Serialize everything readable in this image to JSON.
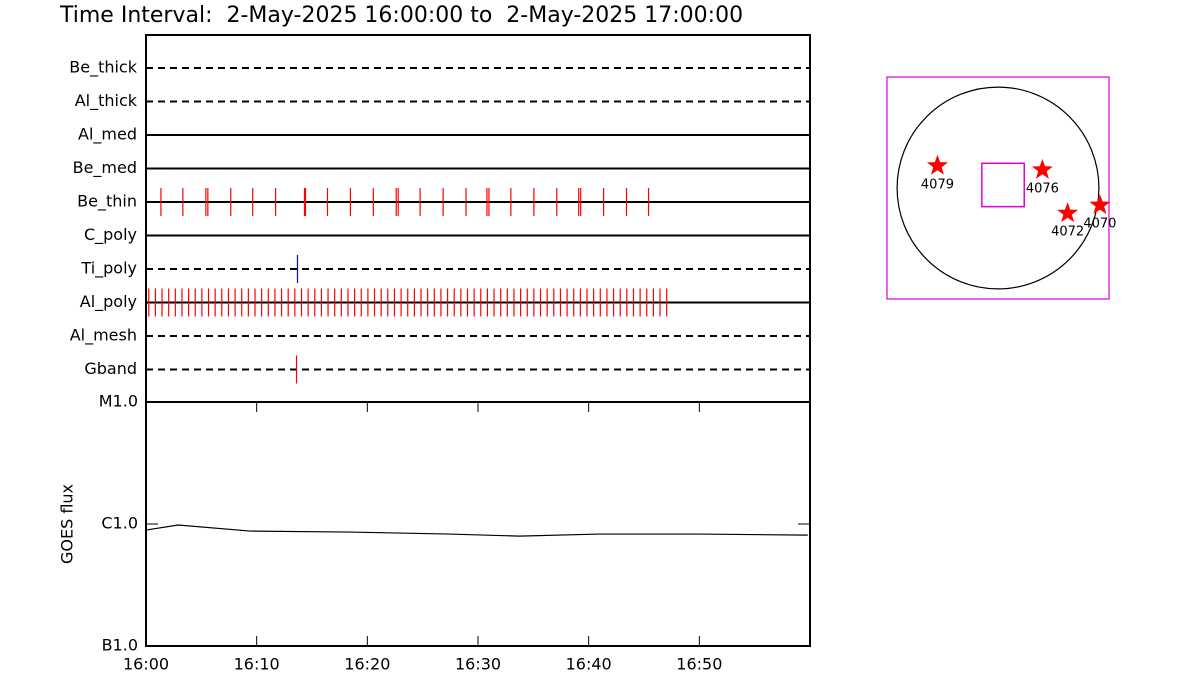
{
  "chart_data": [
    {
      "type": "timeline",
      "title": "Time Interval:  2-May-2025 16:00:00 to  2-May-2025 17:00:00",
      "xlim": [
        0,
        60
      ],
      "filters": [
        {
          "name": "Be_thick",
          "style": "dashed",
          "color": "#ff0000",
          "events": []
        },
        {
          "name": "Al_thick",
          "style": "dashed",
          "color": "#ff0000",
          "events": []
        },
        {
          "name": "Al_med",
          "style": "solid",
          "color": "#ff0000",
          "events": []
        },
        {
          "name": "Be_med",
          "style": "solid",
          "color": "#ff0000",
          "events": []
        },
        {
          "name": "Be_thin",
          "style": "solid",
          "color": "#ff0000",
          "events": [
            1.35,
            3.33,
            5.41,
            5.59,
            7.66,
            9.64,
            11.71,
            14.32,
            14.41,
            16.4,
            18.47,
            20.54,
            22.61,
            22.79,
            24.77,
            26.85,
            28.92,
            30.81,
            30.99,
            32.97,
            35.05,
            37.12,
            39.1,
            39.28,
            41.35,
            43.42,
            45.41
          ]
        },
        {
          "name": "C_poly",
          "style": "solid",
          "color": "#ff0000",
          "events": []
        },
        {
          "name": "Ti_poly",
          "style": "dashed",
          "color": "#0000ff",
          "events": [
            13.69
          ]
        },
        {
          "name": "Al_poly",
          "style": "solid",
          "color": "#ff0000",
          "events": [
            0.25,
            0.85,
            1.45,
            2.05,
            2.65,
            3.25,
            3.85,
            4.45,
            5.05,
            5.65,
            6.25,
            6.85,
            7.45,
            8.05,
            8.65,
            9.25,
            9.85,
            10.45,
            11.05,
            11.65,
            12.25,
            12.85,
            13.45,
            14.05,
            14.65,
            15.25,
            15.85,
            16.45,
            17.05,
            17.65,
            18.25,
            18.85,
            19.45,
            20.05,
            20.65,
            21.25,
            21.85,
            22.45,
            23.05,
            23.65,
            24.25,
            24.85,
            25.45,
            26.05,
            26.65,
            27.25,
            27.85,
            28.45,
            29.05,
            29.65,
            30.25,
            30.85,
            31.45,
            32.05,
            32.65,
            33.25,
            33.85,
            34.45,
            35.05,
            35.65,
            36.25,
            36.85,
            37.45,
            38.05,
            38.65,
            39.25,
            39.85,
            40.45,
            41.05,
            41.65,
            42.25,
            42.85,
            43.45,
            44.05,
            44.65,
            45.25,
            45.85,
            46.45,
            47.05
          ]
        },
        {
          "name": "Al_mesh",
          "style": "dashed",
          "color": "#ff0000",
          "events": []
        },
        {
          "name": "Gband",
          "style": "dashed",
          "color": "#ff0000",
          "events": [
            13.6
          ]
        }
      ]
    },
    {
      "type": "line",
      "ylabel": "GOES flux",
      "log": true,
      "color": "#000000",
      "xlim": [
        0,
        60
      ],
      "xticks": [
        {
          "value": 0,
          "label": "16:00"
        },
        {
          "value": 10,
          "label": "16:10"
        },
        {
          "value": 20,
          "label": "16:20"
        },
        {
          "value": 30,
          "label": "16:30"
        },
        {
          "value": 40,
          "label": "16:40"
        },
        {
          "value": 50,
          "label": "16:50"
        }
      ],
      "ylim": [
        1e-07,
        1e-05
      ],
      "yticks": [
        {
          "value": 1e-05,
          "label": "M1.0"
        },
        {
          "value": 1e-06,
          "label": "C1.0"
        },
        {
          "value": 1e-07,
          "label": "B1.0"
        }
      ],
      "x": [
        0,
        2.9,
        9.4,
        18.4,
        27.4,
        33.7,
        40.9,
        49.9,
        59.8
      ],
      "values": [
        8.92e-07,
        9.81e-07,
        8.75e-07,
        8.59e-07,
        8.27e-07,
        7.96e-07,
        8.27e-07,
        8.27e-07,
        8.11e-07
      ]
    },
    {
      "type": "map",
      "xlim": [
        -1.1,
        1.1
      ],
      "ylim": [
        -1.1,
        1.1
      ],
      "frame_color": "#e000e0",
      "fov": {
        "x": 0.05,
        "y": 0.03,
        "width": 0.42,
        "height": 0.43
      },
      "points": [
        {
          "label": "4079",
          "x": -0.6,
          "y": 0.22,
          "color": "#ff0000"
        },
        {
          "label": "4076",
          "x": 0.44,
          "y": 0.18,
          "color": "#ff0000"
        },
        {
          "label": "4072",
          "x": 0.69,
          "y": -0.25,
          "color": "#ff0000"
        },
        {
          "label": "4070",
          "x": 1.01,
          "y": -0.17,
          "color": "#ff0000"
        }
      ]
    }
  ]
}
